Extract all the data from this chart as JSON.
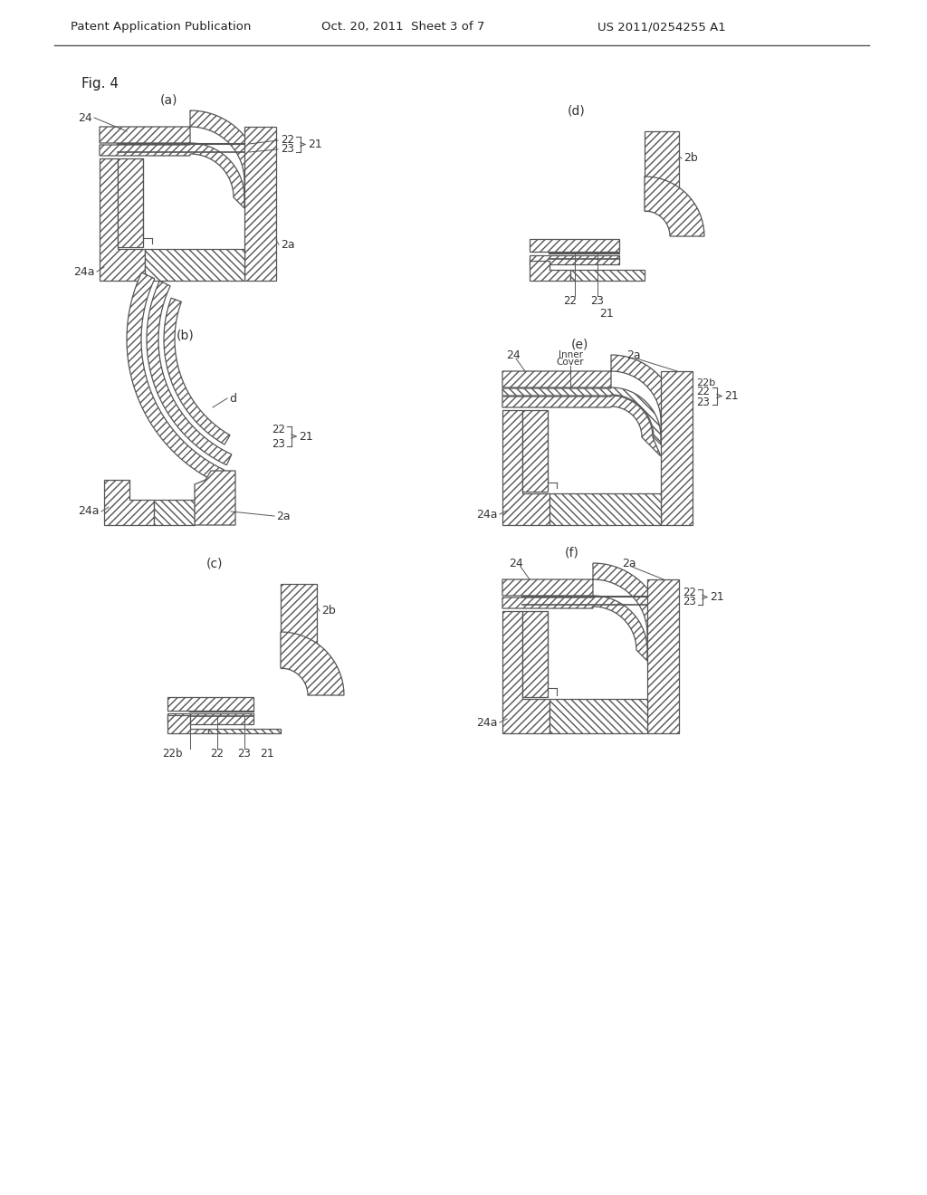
{
  "header_left": "Patent Application Publication",
  "header_center": "Oct. 20, 2011  Sheet 3 of 7",
  "header_right": "US 2011/0254255 A1",
  "fig_label": "Fig. 4",
  "bg_color": "#ffffff",
  "ec": "#555555",
  "lw": 0.8,
  "hatch_density": "////"
}
